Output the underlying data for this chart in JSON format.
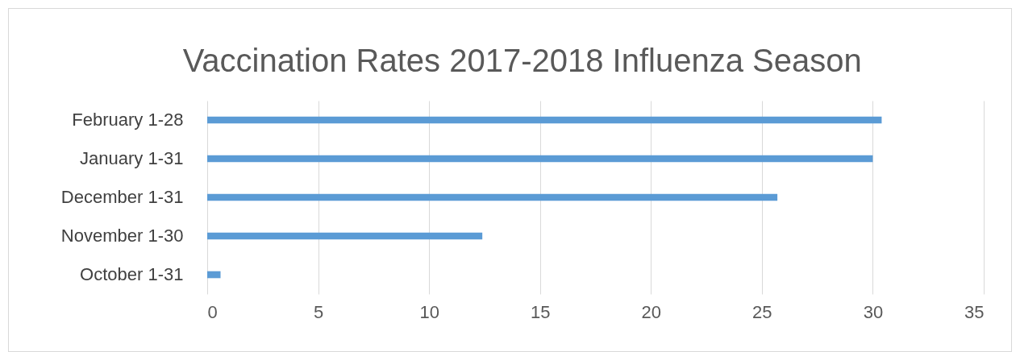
{
  "chart_data": {
    "type": "bar",
    "orientation": "horizontal",
    "title": "Vaccination Rates 2017-2018 Influenza Season",
    "categories": [
      "February 1-28",
      "January 1-31",
      "December 1-31",
      "November 1-30",
      "October 1-31"
    ],
    "values": [
      30.4,
      30.0,
      25.7,
      12.4,
      0.6
    ],
    "color": "#5b9bd5",
    "xlim": [
      0,
      35
    ],
    "xticks": [
      0,
      5,
      10,
      15,
      20,
      25,
      30,
      35
    ],
    "grid": "x"
  }
}
